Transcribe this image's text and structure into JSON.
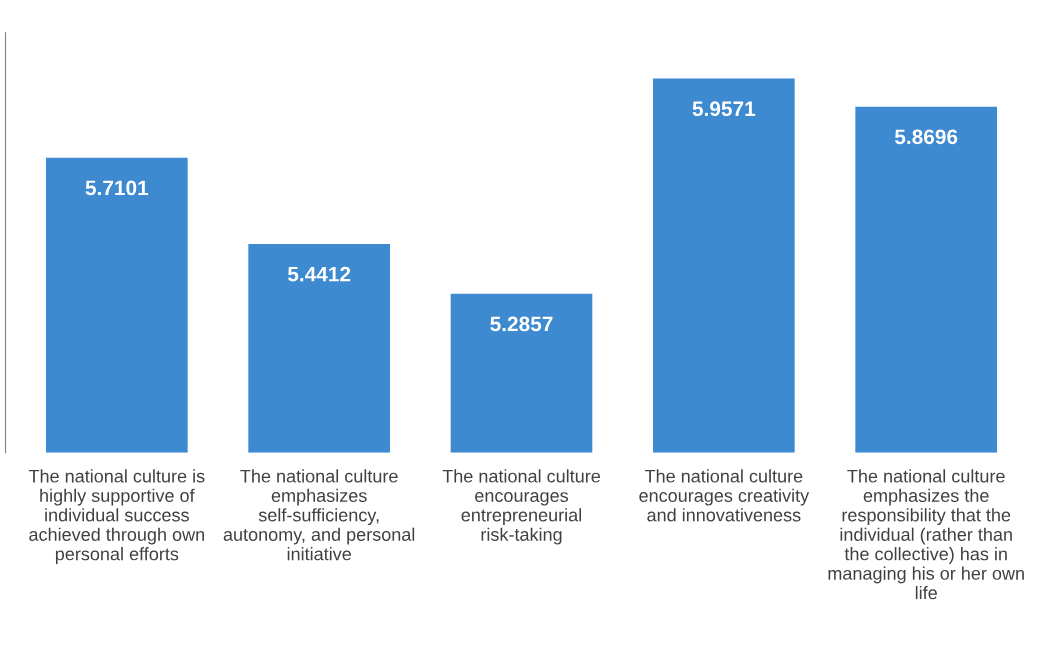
{
  "chart_data": {
    "type": "bar",
    "categories": [
      "The national culture is highly supportive of individual success achieved through own personal efforts",
      "The national culture emphasizes self-sufficiency, autonomy, and personal initiative",
      "The national culture encourages entrepreneurial risk-taking",
      "The national culture encourages creativity and innovativeness",
      "The national culture emphasizes the responsibility that the individual (rather than the collective) has in managing his or her own life"
    ],
    "values": [
      5.7101,
      5.4412,
      5.2857,
      5.9571,
      5.8696
    ],
    "color": "#3d8ad0",
    "ylim": [
      4.79,
      6.1
    ],
    "data_labels": true,
    "tick_labels": "x"
  }
}
